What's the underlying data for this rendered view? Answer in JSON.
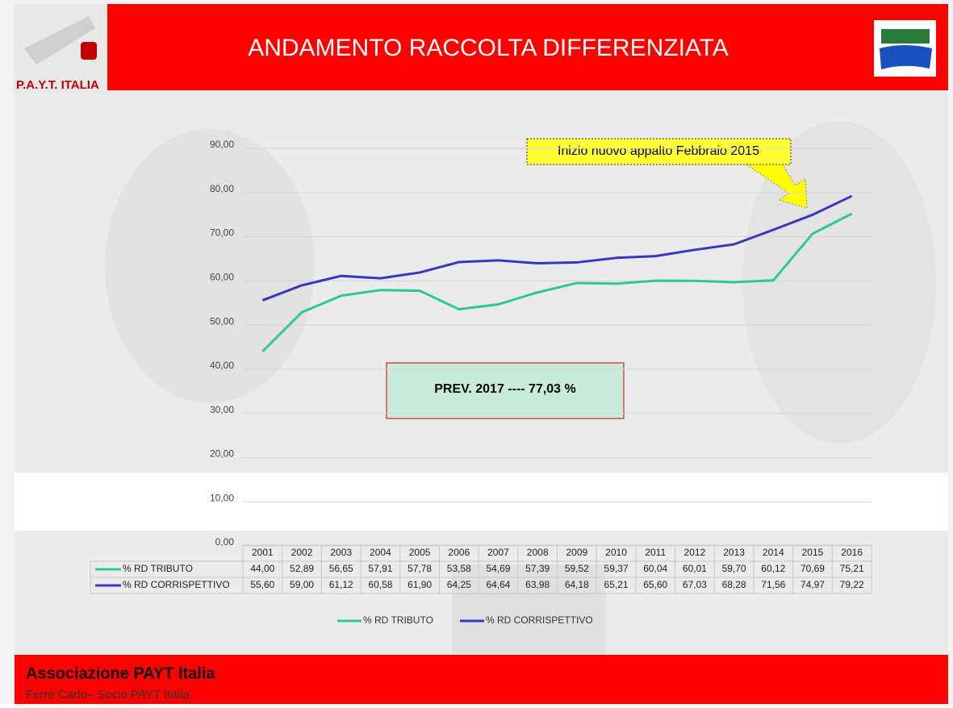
{
  "header": {
    "title": "ANDAMENTO RACCOLTA DIFFERENZIATA",
    "logo_text": "P.A.Y.T. ITALIA"
  },
  "footer": {
    "title": "Associazione PAYT Italia",
    "subtitle": "Ferrè Carlo– Socio PAYT Italia"
  },
  "chart_data": {
    "type": "line",
    "categories": [
      "2001",
      "2002",
      "2003",
      "2004",
      "2005",
      "2006",
      "2007",
      "2008",
      "2009",
      "2010",
      "2011",
      "2012",
      "2013",
      "2014",
      "2015",
      "2016"
    ],
    "series": [
      {
        "name": "% RD TRIBUTO",
        "color": "#2ec79c",
        "values": [
          44.0,
          52.89,
          56.65,
          57.91,
          57.78,
          53.58,
          54.69,
          57.39,
          59.52,
          59.37,
          60.04,
          60.01,
          59.7,
          60.12,
          70.69,
          75.21
        ],
        "value_labels": [
          "44,00",
          "52,89",
          "56,65",
          "57,91",
          "57,78",
          "53,58",
          "54,69",
          "57,39",
          "59,52",
          "59,37",
          "60,04",
          "60,01",
          "59,70",
          "60,12",
          "70,69",
          "75,21"
        ]
      },
      {
        "name": "% RD CORRISPETTIVO",
        "color": "#3a36c4",
        "values": [
          55.6,
          59.0,
          61.12,
          60.58,
          61.9,
          64.25,
          64.64,
          63.98,
          64.18,
          65.21,
          65.6,
          67.03,
          68.28,
          71.56,
          74.97,
          79.22
        ],
        "value_labels": [
          "55,60",
          "59,00",
          "61,12",
          "60,58",
          "61,90",
          "64,25",
          "64,64",
          "63,98",
          "64,18",
          "65,21",
          "65,60",
          "67,03",
          "68,28",
          "71,56",
          "74,97",
          "79,22"
        ]
      }
    ],
    "ylim": [
      0,
      90
    ],
    "yticks": [
      {
        "value": 0,
        "label": "0,00"
      },
      {
        "value": 10,
        "label": "10,00"
      },
      {
        "value": 20,
        "label": "20,00"
      },
      {
        "value": 30,
        "label": "30,00"
      },
      {
        "value": 40,
        "label": "40,00"
      },
      {
        "value": 50,
        "label": "50,00"
      },
      {
        "value": 60,
        "label": "60,00"
      },
      {
        "value": 70,
        "label": "70,00"
      },
      {
        "value": 80,
        "label": "80,00"
      },
      {
        "value": 90,
        "label": "90,00"
      }
    ],
    "grid": true,
    "annotations": [
      "Inizio nuovo appalto Febbraio 2015",
      "PREV. 2017 ---- 77,03 %"
    ]
  }
}
